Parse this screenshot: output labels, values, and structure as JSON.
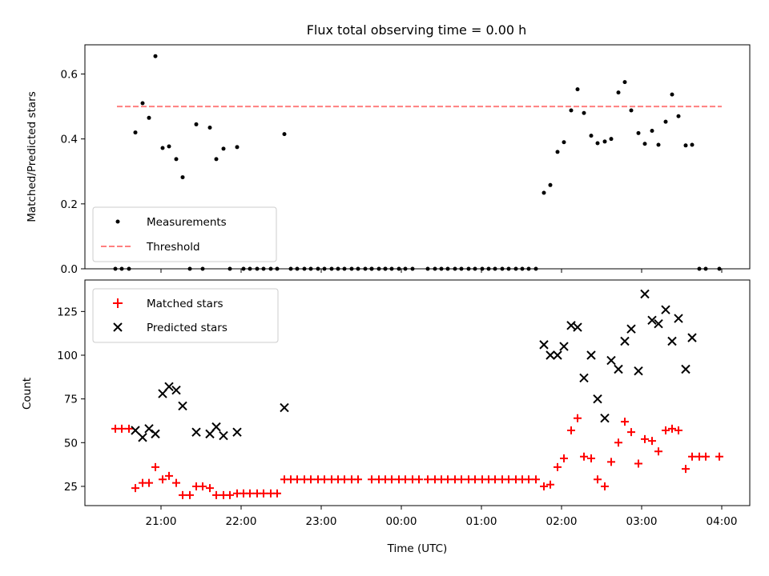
{
  "chart_data": [
    {
      "type": "scatter",
      "title": "Flux total observing time = 0.00 h",
      "xlabel": "",
      "ylabel": "Matched/Predicted stars",
      "ylim": [
        0,
        0.69
      ],
      "yticks": [
        0.0,
        0.2,
        0.4,
        0.6
      ],
      "ytick_labels": [
        "0.0",
        "0.2",
        "0.4",
        "0.6"
      ],
      "xlim": [
        -3.95,
        4.35
      ],
      "x_unit": "hours relative to 00:00 UTC",
      "legend": {
        "placement": "lower-left",
        "entries": [
          "Measurements",
          "Threshold"
        ]
      },
      "threshold": {
        "name": "Threshold",
        "y": 0.5,
        "x_range": [
          -3.55,
          4.0
        ],
        "color": "#ff7f7f",
        "style": "dashed"
      },
      "series": [
        {
          "name": "Measurements",
          "marker": "dot",
          "color": "#000000",
          "points": [
            [
              -3.57,
              0
            ],
            [
              -3.49,
              0
            ],
            [
              -3.4,
              0
            ],
            [
              -3.32,
              0.42
            ],
            [
              -3.23,
              0.51
            ],
            [
              -3.15,
              0.465
            ],
            [
              -3.07,
              0.655
            ],
            [
              -2.98,
              0.372
            ],
            [
              -2.9,
              0.377
            ],
            [
              -2.81,
              0.338
            ],
            [
              -2.73,
              0.282
            ],
            [
              -2.64,
              0
            ],
            [
              -2.56,
              0.445
            ],
            [
              -2.48,
              0
            ],
            [
              -2.39,
              0.435
            ],
            [
              -2.31,
              0.338
            ],
            [
              -2.22,
              0.37
            ],
            [
              -2.14,
              0
            ],
            [
              -2.05,
              0.375
            ],
            [
              -1.97,
              0
            ],
            [
              -1.89,
              0
            ],
            [
              -1.8,
              0
            ],
            [
              -1.72,
              0
            ],
            [
              -1.63,
              0
            ],
            [
              -1.55,
              0
            ],
            [
              -1.46,
              0.415
            ],
            [
              -1.38,
              0
            ],
            [
              -1.3,
              0
            ],
            [
              -1.21,
              0
            ],
            [
              -1.13,
              0
            ],
            [
              -1.04,
              0
            ],
            [
              -0.96,
              0
            ],
            [
              -0.87,
              0
            ],
            [
              -0.79,
              0
            ],
            [
              -0.71,
              0
            ],
            [
              -0.62,
              0
            ],
            [
              -0.54,
              0
            ],
            [
              -0.45,
              0
            ],
            [
              -0.37,
              0
            ],
            [
              -0.28,
              0
            ],
            [
              -0.2,
              0
            ],
            [
              -0.37,
              0
            ],
            [
              -0.2,
              0
            ],
            [
              -0.12,
              0
            ],
            [
              -0.03,
              0
            ],
            [
              0.05,
              0
            ],
            [
              0.14,
              0
            ],
            [
              0.33,
              0
            ],
            [
              0.42,
              0
            ],
            [
              0.5,
              0
            ],
            [
              0.58,
              0
            ],
            [
              0.67,
              0
            ],
            [
              0.75,
              0
            ],
            [
              0.84,
              0
            ],
            [
              0.92,
              0
            ],
            [
              1.01,
              0
            ],
            [
              1.09,
              0
            ],
            [
              1.17,
              0
            ],
            [
              1.26,
              0
            ],
            [
              1.34,
              0
            ],
            [
              1.43,
              0
            ],
            [
              1.51,
              0
            ],
            [
              1.59,
              0
            ],
            [
              1.68,
              0
            ],
            [
              1.78,
              0.234
            ],
            [
              1.86,
              0.258
            ],
            [
              1.95,
              0.36
            ],
            [
              2.03,
              0.39
            ],
            [
              2.12,
              0.488
            ],
            [
              2.2,
              0.553
            ],
            [
              2.28,
              0.48
            ],
            [
              2.37,
              0.41
            ],
            [
              2.45,
              0.387
            ],
            [
              2.54,
              0.392
            ],
            [
              2.62,
              0.4
            ],
            [
              2.71,
              0.543
            ],
            [
              2.79,
              0.575
            ],
            [
              2.87,
              0.488
            ],
            [
              2.96,
              0.418
            ],
            [
              3.04,
              0.385
            ],
            [
              3.13,
              0.425
            ],
            [
              3.21,
              0.382
            ],
            [
              3.3,
              0.453
            ],
            [
              3.38,
              0.537
            ],
            [
              3.46,
              0.47
            ],
            [
              3.55,
              0.38
            ],
            [
              3.63,
              0.382
            ],
            [
              3.72,
              0
            ],
            [
              3.8,
              0
            ],
            [
              3.97,
              0
            ]
          ]
        }
      ]
    },
    {
      "type": "scatter",
      "title": "",
      "xlabel": "Time (UTC)",
      "ylabel": "Count",
      "ylim": [
        14,
        143
      ],
      "yticks": [
        25,
        50,
        75,
        100,
        125
      ],
      "ytick_labels": [
        "25",
        "50",
        "75",
        "100",
        "125"
      ],
      "xlim": [
        -3.95,
        4.35
      ],
      "xticks": [
        -3,
        -2,
        -1,
        0,
        1,
        2,
        3,
        4
      ],
      "xtick_labels": [
        "21:00",
        "22:00",
        "23:00",
        "00:00",
        "01:00",
        "02:00",
        "03:00",
        "04:00"
      ],
      "legend": {
        "placement": "top-left",
        "entries": [
          "Matched stars",
          "Predicted stars"
        ]
      },
      "series": [
        {
          "name": "Matched stars",
          "marker": "plus",
          "color": "#ff0000",
          "points": [
            [
              -3.57,
              58
            ],
            [
              -3.49,
              58
            ],
            [
              -3.4,
              58
            ],
            [
              -3.32,
              24
            ],
            [
              -3.23,
              27
            ],
            [
              -3.15,
              27
            ],
            [
              -3.07,
              36
            ],
            [
              -2.98,
              29
            ],
            [
              -2.9,
              31
            ],
            [
              -2.81,
              27
            ],
            [
              -2.73,
              20
            ],
            [
              -2.64,
              20
            ],
            [
              -2.56,
              25
            ],
            [
              -2.48,
              25
            ],
            [
              -2.39,
              24
            ],
            [
              -2.31,
              20
            ],
            [
              -2.22,
              20
            ],
            [
              -2.14,
              20
            ],
            [
              -2.05,
              21
            ],
            [
              -1.97,
              21
            ],
            [
              -1.89,
              21
            ],
            [
              -1.8,
              21
            ],
            [
              -1.72,
              21
            ],
            [
              -1.63,
              21
            ],
            [
              -1.55,
              21
            ],
            [
              -1.46,
              29
            ],
            [
              -1.38,
              29
            ],
            [
              -1.3,
              29
            ],
            [
              -1.21,
              29
            ],
            [
              -1.13,
              29
            ],
            [
              -1.04,
              29
            ],
            [
              -0.96,
              29
            ],
            [
              -0.87,
              29
            ],
            [
              -0.79,
              29
            ],
            [
              -0.71,
              29
            ],
            [
              -0.62,
              29
            ],
            [
              -0.54,
              29
            ],
            [
              -0.37,
              29
            ],
            [
              -0.28,
              29
            ],
            [
              -0.2,
              29
            ],
            [
              -0.12,
              29
            ],
            [
              -0.03,
              29
            ],
            [
              0.05,
              29
            ],
            [
              0.14,
              29
            ],
            [
              0.22,
              29
            ],
            [
              0.33,
              29
            ],
            [
              0.42,
              29
            ],
            [
              0.5,
              29
            ],
            [
              0.58,
              29
            ],
            [
              0.67,
              29
            ],
            [
              0.75,
              29
            ],
            [
              0.84,
              29
            ],
            [
              0.92,
              29
            ],
            [
              1.01,
              29
            ],
            [
              1.09,
              29
            ],
            [
              1.17,
              29
            ],
            [
              1.26,
              29
            ],
            [
              1.34,
              29
            ],
            [
              1.43,
              29
            ],
            [
              1.51,
              29
            ],
            [
              1.59,
              29
            ],
            [
              1.68,
              29
            ],
            [
              1.78,
              25
            ],
            [
              1.86,
              26
            ],
            [
              1.95,
              36
            ],
            [
              2.03,
              41
            ],
            [
              2.12,
              57
            ],
            [
              2.2,
              64
            ],
            [
              2.28,
              42
            ],
            [
              2.37,
              41
            ],
            [
              2.45,
              29
            ],
            [
              2.54,
              25
            ],
            [
              2.62,
              39
            ],
            [
              2.71,
              50
            ],
            [
              2.79,
              62
            ],
            [
              2.87,
              56
            ],
            [
              2.96,
              38
            ],
            [
              3.04,
              52
            ],
            [
              3.13,
              51
            ],
            [
              3.21,
              45
            ],
            [
              3.3,
              57
            ],
            [
              3.38,
              58
            ],
            [
              3.46,
              57
            ],
            [
              3.55,
              35
            ],
            [
              3.63,
              42
            ],
            [
              3.72,
              42
            ],
            [
              3.8,
              42
            ],
            [
              3.97,
              42
            ]
          ]
        },
        {
          "name": "Predicted stars",
          "marker": "x",
          "color": "#000000",
          "points": [
            [
              -3.32,
              57
            ],
            [
              -3.23,
              53
            ],
            [
              -3.15,
              58
            ],
            [
              -3.07,
              55
            ],
            [
              -2.98,
              78
            ],
            [
              -2.9,
              82
            ],
            [
              -2.81,
              80
            ],
            [
              -2.73,
              71
            ],
            [
              -2.56,
              56
            ],
            [
              -2.39,
              55
            ],
            [
              -2.31,
              59
            ],
            [
              -2.22,
              54
            ],
            [
              -2.05,
              56
            ],
            [
              -1.46,
              70
            ],
            [
              1.78,
              106
            ],
            [
              1.86,
              100
            ],
            [
              1.95,
              100
            ],
            [
              2.03,
              105
            ],
            [
              2.12,
              117
            ],
            [
              2.2,
              116
            ],
            [
              2.28,
              87
            ],
            [
              2.37,
              100
            ],
            [
              2.45,
              75
            ],
            [
              2.54,
              64
            ],
            [
              2.62,
              97
            ],
            [
              2.71,
              92
            ],
            [
              2.79,
              108
            ],
            [
              2.87,
              115
            ],
            [
              2.96,
              91
            ],
            [
              3.04,
              135
            ],
            [
              3.13,
              120
            ],
            [
              3.21,
              118
            ],
            [
              3.3,
              126
            ],
            [
              3.38,
              108
            ],
            [
              3.46,
              121
            ],
            [
              3.55,
              92
            ],
            [
              3.63,
              110
            ]
          ]
        }
      ]
    }
  ]
}
